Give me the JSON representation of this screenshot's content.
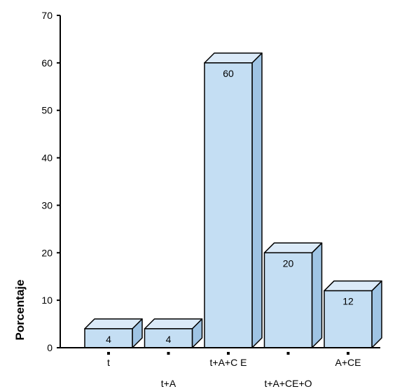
{
  "chart_data": {
    "type": "bar",
    "categories": [
      "t",
      "t+A",
      "t+A+C E",
      "t+A+CE+O",
      "A+CE"
    ],
    "values": [
      4,
      4,
      60,
      20,
      12
    ],
    "data_labels": [
      "4",
      "4",
      "60",
      "20",
      "12"
    ],
    "title": "",
    "xlabel": "",
    "ylabel": "Porcentaje",
    "ylim": [
      0,
      70
    ],
    "yticks": [
      0,
      10,
      20,
      30,
      40,
      50,
      60,
      70
    ],
    "ytick_labels": [
      "0",
      "10",
      "20",
      "30",
      "40",
      "50",
      "60",
      "70"
    ],
    "style": "3d-bars",
    "grid": false,
    "legend": "none",
    "colors": {
      "bar_front": "#c4def3",
      "bar_top": "#dbeaf8",
      "bar_side": "#9fc4e4",
      "outline": "#000000",
      "axis": "#000000"
    }
  }
}
